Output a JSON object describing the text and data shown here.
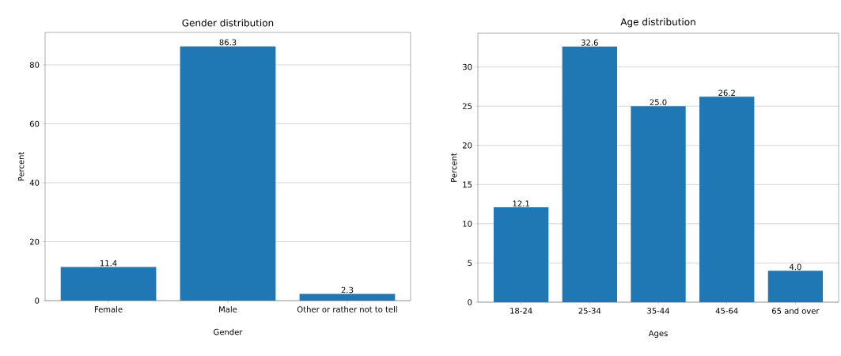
{
  "chart_data": [
    {
      "type": "bar",
      "title": "Gender distribution",
      "xlabel": "Gender",
      "ylabel": "Percent",
      "categories": [
        "Female",
        "Male",
        "Other or rather not to tell"
      ],
      "values": [
        11.4,
        86.3,
        2.3
      ],
      "value_labels": [
        "11.4",
        "86.3",
        "2.3"
      ],
      "color": "#1f77b4",
      "ylim": [
        0,
        91
      ],
      "yticks": [
        0,
        20,
        40,
        60,
        80
      ],
      "grid": "y"
    },
    {
      "type": "bar",
      "title": "Age distribution",
      "xlabel": "Ages",
      "ylabel": "Percent",
      "categories": [
        "18-24",
        "25-34",
        "35-44",
        "45-64",
        "65 and over"
      ],
      "values": [
        12.1,
        32.6,
        25.0,
        26.2,
        4.0
      ],
      "value_labels": [
        "12.1",
        "32.6",
        "25.0",
        "26.2",
        "4.0"
      ],
      "color": "#1f77b4",
      "ylim": [
        0,
        34.3
      ],
      "yticks": [
        0,
        5,
        10,
        15,
        20,
        25,
        30
      ],
      "grid": "y"
    }
  ]
}
